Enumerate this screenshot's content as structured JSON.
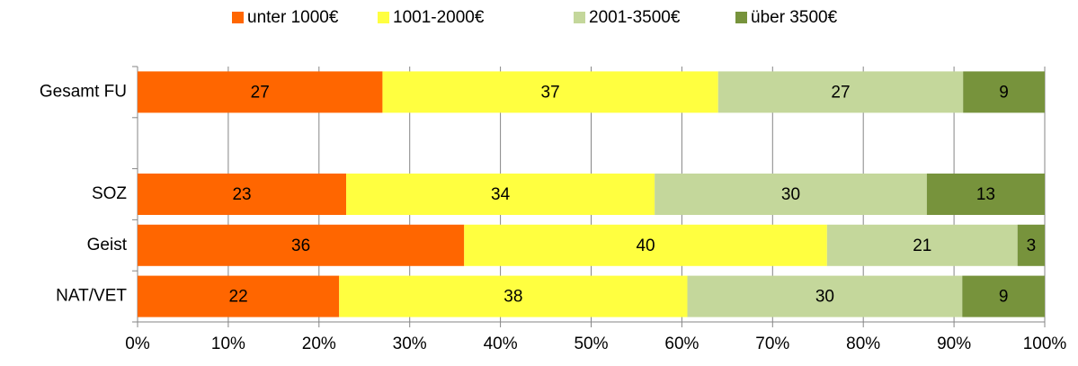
{
  "chart_data": {
    "type": "bar",
    "orientation": "horizontal",
    "stacked": "percent",
    "categories": [
      "Gesamt FU",
      null,
      "SOZ",
      "Geist",
      "NAT/VET"
    ],
    "series": [
      {
        "name": "unter 1000€",
        "color": "#ff6600",
        "values": [
          27,
          null,
          23,
          36,
          22
        ]
      },
      {
        "name": "1001-2000€",
        "color": "#ffff40",
        "values": [
          37,
          null,
          34,
          40,
          38
        ]
      },
      {
        "name": "2001-3500€",
        "color": "#c4d79b",
        "values": [
          27,
          null,
          30,
          21,
          30
        ]
      },
      {
        "name": "über 3500€",
        "color": "#77933c",
        "values": [
          9,
          null,
          13,
          3,
          9
        ]
      }
    ],
    "xlim": [
      0,
      100
    ],
    "xticks": [
      {
        "value": 0,
        "label": "0%"
      },
      {
        "value": 10,
        "label": "10%"
      },
      {
        "value": 20,
        "label": "20%"
      },
      {
        "value": 30,
        "label": "30%"
      },
      {
        "value": 40,
        "label": "40%"
      },
      {
        "value": 50,
        "label": "50%"
      },
      {
        "value": 60,
        "label": "60%"
      },
      {
        "value": 70,
        "label": "70%"
      },
      {
        "value": 80,
        "label": "80%"
      },
      {
        "value": 90,
        "label": "90%"
      },
      {
        "value": 100,
        "label": "100%"
      }
    ],
    "grid": true,
    "legend": "top"
  }
}
